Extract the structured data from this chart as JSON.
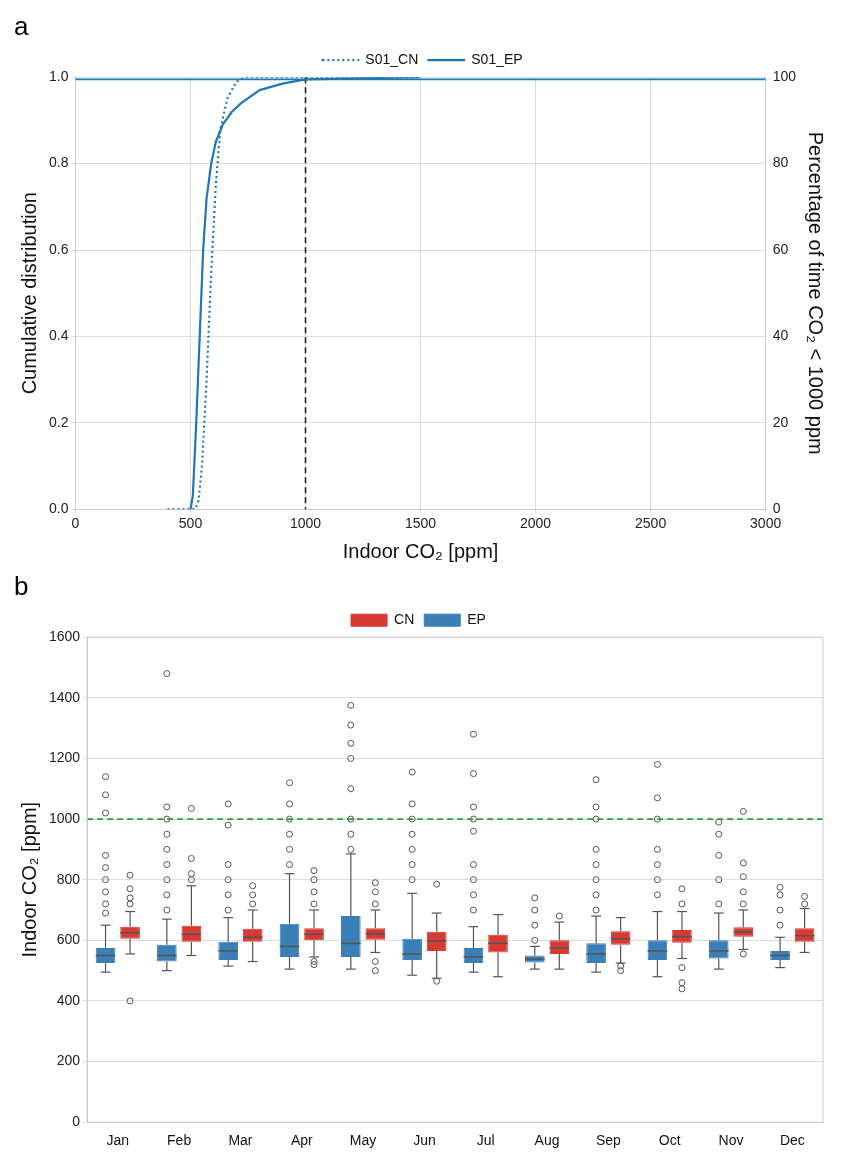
{
  "chart_data": [
    {
      "type": "line",
      "title": "a",
      "xlabel": "Indoor CO₂ [ppm]",
      "ylabel": "Cumulative distribution",
      "y2label": "Percentage of time CO₂ < 1000 ppm",
      "xlim": [
        0,
        3000
      ],
      "xticks": [
        0,
        500,
        1000,
        1500,
        2000,
        2500,
        3000
      ],
      "ylim": [
        0,
        1
      ],
      "yticks": [
        {
          "value": 0,
          "label": "0.0"
        },
        0.2,
        0.4,
        0.6,
        0.8,
        {
          "value": 1,
          "label": "1.0"
        }
      ],
      "y2lim": [
        0,
        100
      ],
      "y2ticks": [
        0,
        20,
        40,
        60,
        80,
        100
      ],
      "grid": true,
      "legend": "top",
      "marker": "none",
      "ref_lines": [
        {
          "axis": "x",
          "value": 1000,
          "color": "#222222",
          "line_style": "dashed"
        },
        {
          "axis": "y2",
          "value": 99.5,
          "color": "#1f77b4",
          "line_style": "solid"
        }
      ],
      "series": [
        {
          "name": "S01_CN",
          "color": "#1f77b4",
          "line_style": "dotted",
          "x": [
            400,
            520,
            535,
            550,
            570,
            590,
            610,
            630,
            660,
            700,
            740,
            1000,
            1500
          ],
          "values": [
            0,
            0,
            0.02,
            0.1,
            0.3,
            0.55,
            0.75,
            0.88,
            0.95,
            0.99,
            1,
            1,
            1
          ]
        },
        {
          "name": "S01_EP",
          "color": "#1f77b4",
          "line_style": "solid",
          "x": [
            500,
            510,
            525,
            540,
            555,
            570,
            590,
            610,
            640,
            680,
            720,
            800,
            900,
            1000,
            1500
          ],
          "values": [
            0,
            0.03,
            0.2,
            0.4,
            0.6,
            0.72,
            0.8,
            0.85,
            0.89,
            0.92,
            0.94,
            0.97,
            0.985,
            0.995,
            1
          ]
        }
      ]
    },
    {
      "type": "box",
      "title": "b",
      "ylabel": "Indoor CO₂ [ppm]",
      "categories": [
        "Jan",
        "Feb",
        "Mar",
        "Apr",
        "May",
        "Jun",
        "Jul",
        "Aug",
        "Sep",
        "Oct",
        "Nov",
        "Dec"
      ],
      "ylim": [
        0,
        1600
      ],
      "yticks": [
        0,
        200,
        400,
        600,
        800,
        1000,
        1200,
        1400,
        1600
      ],
      "grid": "y",
      "legend": "top",
      "ref_lines": [
        {
          "axis": "y",
          "value": 1000,
          "color": "#2ca02c",
          "line_style": "dashed"
        }
      ],
      "series": [
        {
          "name": "EP",
          "color": "#3a7fb8",
          "boxes": [
            {
              "low": 495,
              "q1": 525,
              "median": 550,
              "q3": 575,
              "high": 650,
              "outliers": [
                690,
                720,
                760,
                800,
                840,
                880,
                1020,
                1080,
                1140
              ]
            },
            {
              "low": 500,
              "q1": 530,
              "median": 550,
              "q3": 585,
              "high": 670,
              "outliers": [
                700,
                750,
                800,
                850,
                900,
                950,
                1000,
                1040,
                1480
              ]
            },
            {
              "low": 515,
              "q1": 535,
              "median": 565,
              "q3": 595,
              "high": 675,
              "outliers": [
                700,
                750,
                800,
                850,
                980,
                1050
              ]
            },
            {
              "low": 505,
              "q1": 545,
              "median": 580,
              "q3": 655,
              "high": 820,
              "outliers": [
                850,
                900,
                950,
                1000,
                1050,
                1120
              ]
            },
            {
              "low": 505,
              "q1": 545,
              "median": 590,
              "q3": 680,
              "high": 885,
              "outliers": [
                900,
                950,
                1000,
                1100,
                1200,
                1250,
                1310,
                1375
              ]
            },
            {
              "low": 485,
              "q1": 535,
              "median": 555,
              "q3": 605,
              "high": 755,
              "outliers": [
                800,
                850,
                900,
                950,
                1000,
                1050,
                1155
              ]
            },
            {
              "low": 495,
              "q1": 525,
              "median": 545,
              "q3": 575,
              "high": 645,
              "outliers": [
                700,
                750,
                800,
                850,
                960,
                1000,
                1040,
                1150,
                1280
              ]
            },
            {
              "low": 505,
              "q1": 527,
              "median": 538,
              "q3": 550,
              "high": 580,
              "outliers": [
                600,
                650,
                700,
                740
              ]
            },
            {
              "low": 495,
              "q1": 525,
              "median": 555,
              "q3": 590,
              "high": 680,
              "outliers": [
                700,
                750,
                800,
                850,
                900,
                1000,
                1040,
                1130
              ]
            },
            {
              "low": 480,
              "q1": 535,
              "median": 565,
              "q3": 600,
              "high": 695,
              "outliers": [
                750,
                800,
                850,
                900,
                1000,
                1070,
                1180
              ]
            },
            {
              "low": 505,
              "q1": 540,
              "median": 565,
              "q3": 600,
              "high": 690,
              "outliers": [
                720,
                800,
                880,
                950,
                990
              ]
            },
            {
              "low": 510,
              "q1": 535,
              "median": 550,
              "q3": 565,
              "high": 610,
              "outliers": [
                650,
                700,
                750,
                775
              ]
            }
          ]
        },
        {
          "name": "CN",
          "color": "#d63a32",
          "boxes": [
            {
              "low": 555,
              "q1": 605,
              "median": 625,
              "q3": 645,
              "high": 695,
              "outliers": [
                400,
                720,
                740,
                770,
                815
              ]
            },
            {
              "low": 550,
              "q1": 595,
              "median": 620,
              "q3": 648,
              "high": 780,
              "outliers": [
                800,
                820,
                870,
                1035
              ]
            },
            {
              "low": 530,
              "q1": 595,
              "median": 610,
              "q3": 638,
              "high": 700,
              "outliers": [
                720,
                750,
                780
              ]
            },
            {
              "low": 545,
              "q1": 600,
              "median": 620,
              "q3": 640,
              "high": 700,
              "outliers": [
                520,
                530,
                720,
                760,
                800,
                830
              ]
            },
            {
              "low": 560,
              "q1": 602,
              "median": 622,
              "q3": 640,
              "high": 700,
              "outliers": [
                500,
                530,
                720,
                760,
                790
              ]
            },
            {
              "low": 475,
              "q1": 565,
              "median": 598,
              "q3": 628,
              "high": 690,
              "outliers": [
                465,
                785
              ]
            },
            {
              "low": 480,
              "q1": 560,
              "median": 590,
              "q3": 618,
              "high": 685
            },
            {
              "low": 505,
              "q1": 555,
              "median": 575,
              "q3": 600,
              "high": 660,
              "outliers": [
                680
              ]
            },
            {
              "low": 525,
              "q1": 585,
              "median": 605,
              "q3": 630,
              "high": 675,
              "outliers": [
                500,
                515
              ]
            },
            {
              "low": 540,
              "q1": 592,
              "median": 612,
              "q3": 634,
              "high": 695,
              "outliers": [
                440,
                460,
                510,
                720,
                770
              ]
            },
            {
              "low": 570,
              "q1": 612,
              "median": 628,
              "q3": 643,
              "high": 700,
              "outliers": [
                555,
                720,
                760,
                810,
                855,
                1025
              ]
            },
            {
              "low": 560,
              "q1": 595,
              "median": 615,
              "q3": 640,
              "high": 705,
              "outliers": [
                720,
                745
              ]
            }
          ]
        }
      ]
    }
  ]
}
